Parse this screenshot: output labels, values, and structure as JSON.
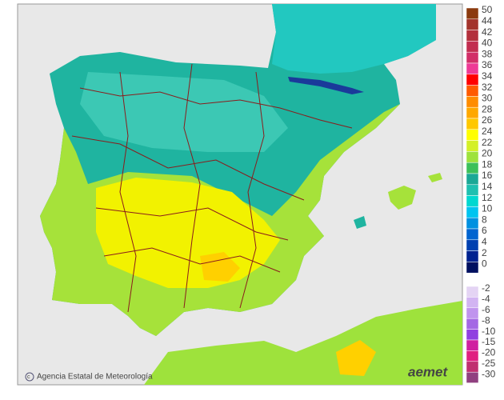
{
  "map": {
    "credit": "Agencia Estatal de Meteorología",
    "logo": "aemet"
  },
  "legend": {
    "positive": [
      {
        "label": 50,
        "color": "#8b3a0f"
      },
      {
        "label": 44,
        "color": "#a3342c"
      },
      {
        "label": 42,
        "color": "#b3303c"
      },
      {
        "label": 40,
        "color": "#c22e50"
      },
      {
        "label": 38,
        "color": "#d22f68"
      },
      {
        "label": 36,
        "color": "#ee3a96"
      },
      {
        "label": 34,
        "color": "#ff0000"
      },
      {
        "label": 32,
        "color": "#ff5a00"
      },
      {
        "label": 30,
        "color": "#ff8c00"
      },
      {
        "label": 28,
        "color": "#ffa800"
      },
      {
        "label": 26,
        "color": "#ffc800"
      },
      {
        "label": 24,
        "color": "#ffff00"
      },
      {
        "label": 22,
        "color": "#d4f028"
      },
      {
        "label": 20,
        "color": "#9ee23c"
      },
      {
        "label": 18,
        "color": "#3cc05a"
      },
      {
        "label": 16,
        "color": "#1aa896"
      },
      {
        "label": 14,
        "color": "#1ec0b0"
      },
      {
        "label": 12,
        "color": "#00d8d0"
      },
      {
        "label": 10,
        "color": "#00c4f0"
      },
      {
        "label": 8,
        "color": "#0090e0"
      },
      {
        "label": 6,
        "color": "#0064d0"
      },
      {
        "label": 4,
        "color": "#0040b0"
      },
      {
        "label": 2,
        "color": "#002290"
      },
      {
        "label": 0,
        "color": "#001060"
      }
    ],
    "negative": [
      {
        "label": -2,
        "color": "#e4d4f4"
      },
      {
        "label": -4,
        "color": "#d2b4f2"
      },
      {
        "label": -6,
        "color": "#c094ee"
      },
      {
        "label": -8,
        "color": "#a468e4"
      },
      {
        "label": -10,
        "color": "#9040e0"
      },
      {
        "label": -15,
        "color": "#d020a0"
      },
      {
        "label": -20,
        "color": "#e02080"
      },
      {
        "label": -25,
        "color": "#c03070"
      },
      {
        "label": -30,
        "color": "#904080"
      }
    ]
  }
}
